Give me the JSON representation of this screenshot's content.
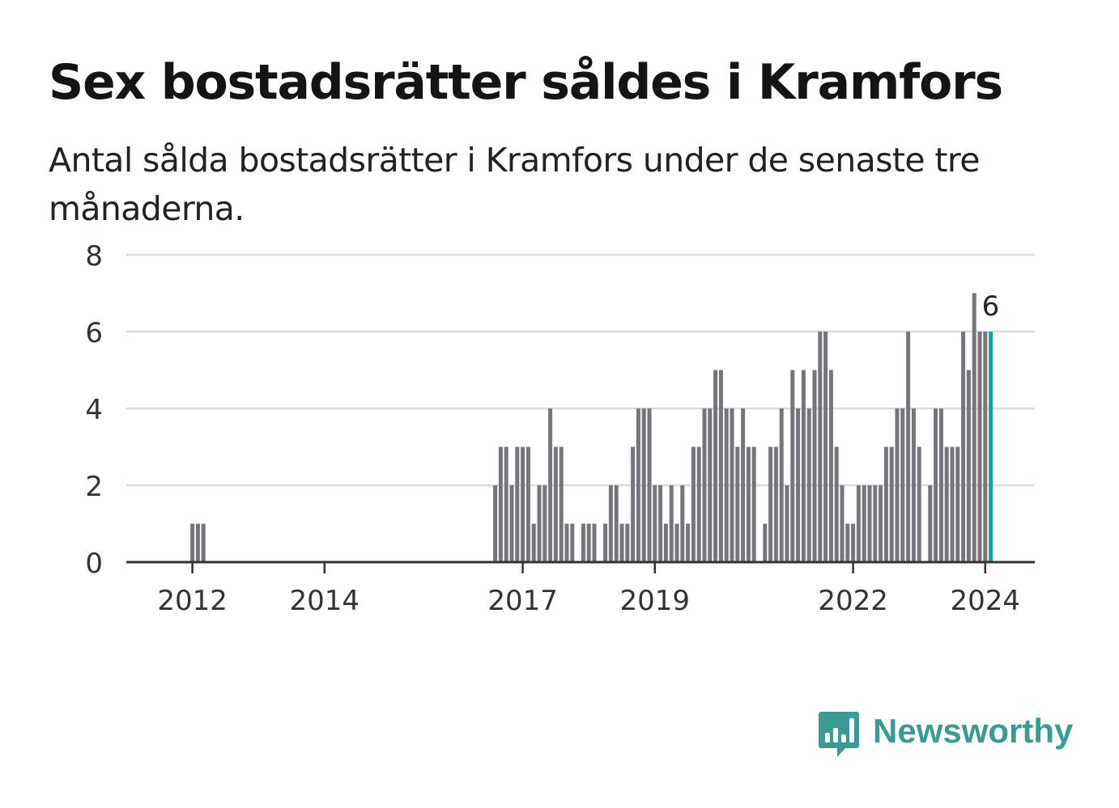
{
  "header": {
    "title": "Sex bostadsrätter såldes i Kramfors",
    "subtitle": "Antal sålda bostadsrätter i Kramfors under de senaste tre månaderna."
  },
  "brand": {
    "name": "Newsworthy",
    "color": "#3b9a94",
    "logo_icon": "bar-chart-speech-bubble-icon"
  },
  "colors": {
    "bar": "#76757b",
    "highlight": "#14a39a",
    "grid": "#dcdcdc",
    "axis": "#333333",
    "text": "#333333"
  },
  "chart_data": {
    "type": "bar",
    "title": "Sex bostadsrätter såldes i Kramfors",
    "subtitle": "Antal sålda bostadsrätter i Kramfors under de senaste tre månaderna.",
    "xlabel": "",
    "ylabel": "",
    "ylim": [
      0,
      8
    ],
    "yticks": [
      0,
      2,
      4,
      6,
      8
    ],
    "grid": true,
    "x_start": "2011-01",
    "x_end": "2024-10",
    "xticks": [
      {
        "date": "2012-01",
        "label": "2012"
      },
      {
        "date": "2014-01",
        "label": "2014"
      },
      {
        "date": "2017-01",
        "label": "2017"
      },
      {
        "date": "2019-01",
        "label": "2019"
      },
      {
        "date": "2022-01",
        "label": "2022"
      },
      {
        "date": "2024-01",
        "label": "2024"
      }
    ],
    "highlight": {
      "date": "2024-02",
      "label": "6"
    },
    "series": [
      {
        "values": [
          {
            "date": "2012-01",
            "y": 1
          },
          {
            "date": "2012-02",
            "y": 1
          },
          {
            "date": "2012-03",
            "y": 1
          },
          {
            "date": "2016-08",
            "y": 2
          },
          {
            "date": "2016-09",
            "y": 3
          },
          {
            "date": "2016-10",
            "y": 3
          },
          {
            "date": "2016-11",
            "y": 2
          },
          {
            "date": "2016-12",
            "y": 3
          },
          {
            "date": "2017-01",
            "y": 3
          },
          {
            "date": "2017-02",
            "y": 3
          },
          {
            "date": "2017-03",
            "y": 1
          },
          {
            "date": "2017-04",
            "y": 2
          },
          {
            "date": "2017-05",
            "y": 2
          },
          {
            "date": "2017-06",
            "y": 4
          },
          {
            "date": "2017-07",
            "y": 3
          },
          {
            "date": "2017-08",
            "y": 3
          },
          {
            "date": "2017-09",
            "y": 1
          },
          {
            "date": "2017-10",
            "y": 1
          },
          {
            "date": "2017-12",
            "y": 1
          },
          {
            "date": "2018-01",
            "y": 1
          },
          {
            "date": "2018-02",
            "y": 1
          },
          {
            "date": "2018-04",
            "y": 1
          },
          {
            "date": "2018-05",
            "y": 2
          },
          {
            "date": "2018-06",
            "y": 2
          },
          {
            "date": "2018-07",
            "y": 1
          },
          {
            "date": "2018-08",
            "y": 1
          },
          {
            "date": "2018-09",
            "y": 3
          },
          {
            "date": "2018-10",
            "y": 4
          },
          {
            "date": "2018-11",
            "y": 4
          },
          {
            "date": "2018-12",
            "y": 4
          },
          {
            "date": "2019-01",
            "y": 2
          },
          {
            "date": "2019-02",
            "y": 2
          },
          {
            "date": "2019-03",
            "y": 1
          },
          {
            "date": "2019-04",
            "y": 2
          },
          {
            "date": "2019-05",
            "y": 1
          },
          {
            "date": "2019-06",
            "y": 2
          },
          {
            "date": "2019-07",
            "y": 1
          },
          {
            "date": "2019-08",
            "y": 3
          },
          {
            "date": "2019-09",
            "y": 3
          },
          {
            "date": "2019-10",
            "y": 4
          },
          {
            "date": "2019-11",
            "y": 4
          },
          {
            "date": "2019-12",
            "y": 5
          },
          {
            "date": "2020-01",
            "y": 5
          },
          {
            "date": "2020-02",
            "y": 4
          },
          {
            "date": "2020-03",
            "y": 4
          },
          {
            "date": "2020-04",
            "y": 3
          },
          {
            "date": "2020-05",
            "y": 4
          },
          {
            "date": "2020-06",
            "y": 3
          },
          {
            "date": "2020-07",
            "y": 3
          },
          {
            "date": "2020-09",
            "y": 1
          },
          {
            "date": "2020-10",
            "y": 3
          },
          {
            "date": "2020-11",
            "y": 3
          },
          {
            "date": "2020-12",
            "y": 4
          },
          {
            "date": "2021-01",
            "y": 2
          },
          {
            "date": "2021-02",
            "y": 5
          },
          {
            "date": "2021-03",
            "y": 4
          },
          {
            "date": "2021-04",
            "y": 5
          },
          {
            "date": "2021-05",
            "y": 4
          },
          {
            "date": "2021-06",
            "y": 5
          },
          {
            "date": "2021-07",
            "y": 6
          },
          {
            "date": "2021-08",
            "y": 6
          },
          {
            "date": "2021-09",
            "y": 5
          },
          {
            "date": "2021-10",
            "y": 3
          },
          {
            "date": "2021-11",
            "y": 2
          },
          {
            "date": "2021-12",
            "y": 1
          },
          {
            "date": "2022-01",
            "y": 1
          },
          {
            "date": "2022-02",
            "y": 2
          },
          {
            "date": "2022-03",
            "y": 2
          },
          {
            "date": "2022-04",
            "y": 2
          },
          {
            "date": "2022-05",
            "y": 2
          },
          {
            "date": "2022-06",
            "y": 2
          },
          {
            "date": "2022-07",
            "y": 3
          },
          {
            "date": "2022-08",
            "y": 3
          },
          {
            "date": "2022-09",
            "y": 4
          },
          {
            "date": "2022-10",
            "y": 4
          },
          {
            "date": "2022-11",
            "y": 6
          },
          {
            "date": "2022-12",
            "y": 4
          },
          {
            "date": "2023-01",
            "y": 3
          },
          {
            "date": "2023-03",
            "y": 2
          },
          {
            "date": "2023-04",
            "y": 4
          },
          {
            "date": "2023-05",
            "y": 4
          },
          {
            "date": "2023-06",
            "y": 3
          },
          {
            "date": "2023-07",
            "y": 3
          },
          {
            "date": "2023-08",
            "y": 3
          },
          {
            "date": "2023-09",
            "y": 6
          },
          {
            "date": "2023-10",
            "y": 5
          },
          {
            "date": "2023-11",
            "y": 7
          },
          {
            "date": "2023-12",
            "y": 6
          },
          {
            "date": "2024-01",
            "y": 6
          },
          {
            "date": "2024-02",
            "y": 6
          }
        ]
      }
    ]
  }
}
